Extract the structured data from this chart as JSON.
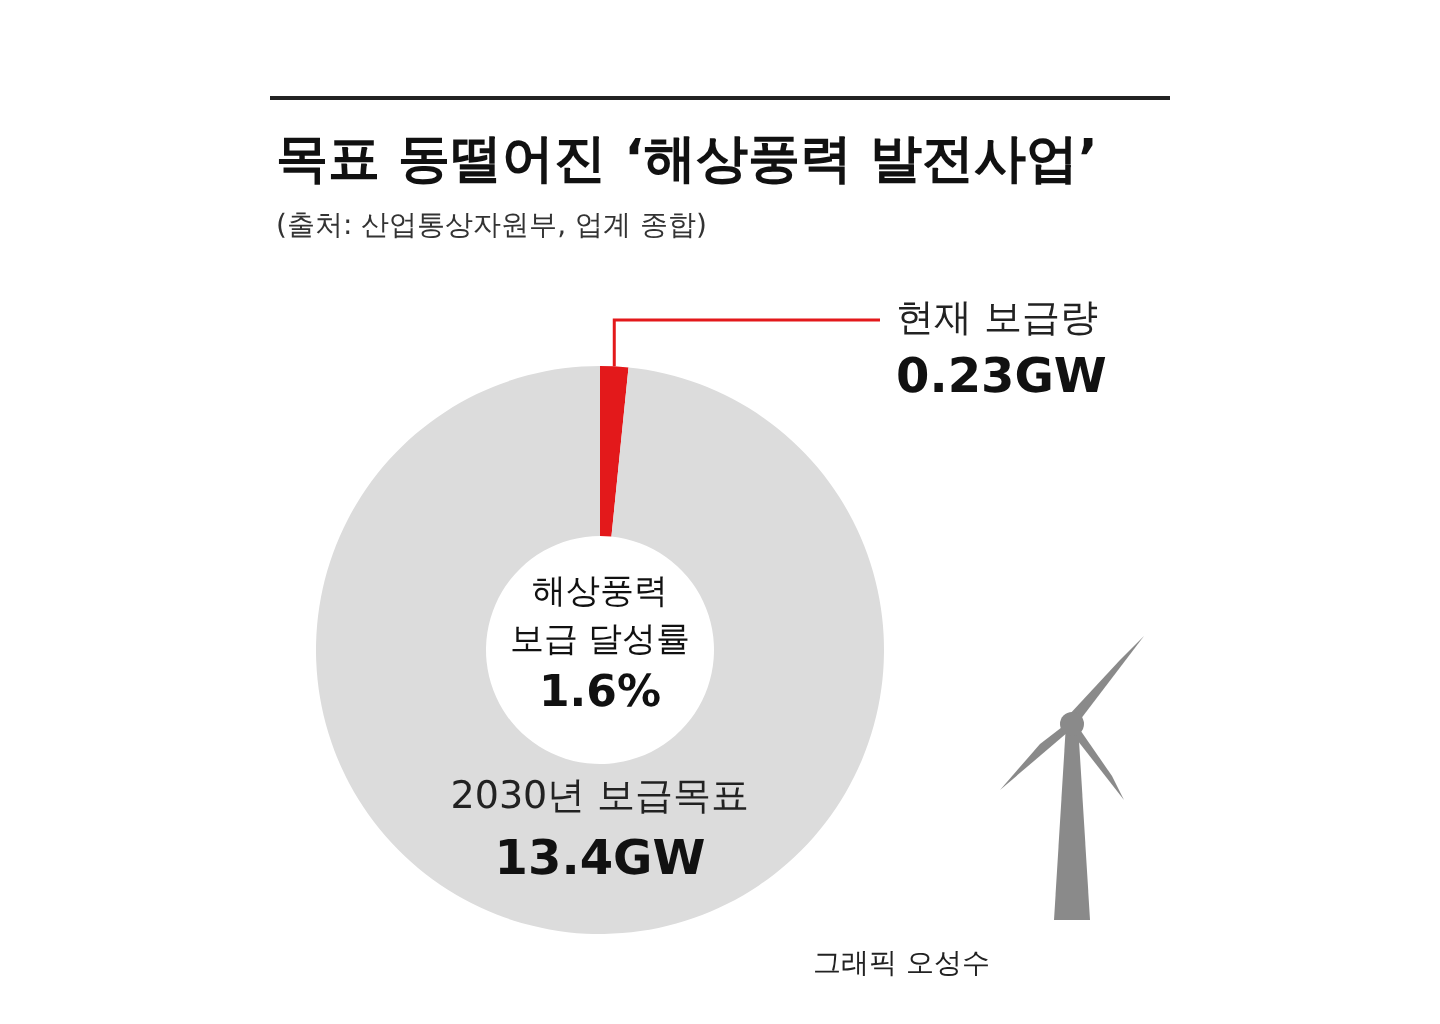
{
  "chart_data": {
    "type": "donut",
    "title": "목표 동떨어진 ‘해상풍력 발전사업’",
    "subtitle": "(출처: 산업통상자원부, 업계 종합)",
    "categories": [
      "현재 보급량",
      "2030년 보급목표"
    ],
    "values": [
      1.6,
      98.4
    ],
    "colors": [
      "#e3191b",
      "#dcdcdc"
    ],
    "annotations": [
      "해상풍력\n보급 달성률\n1.6%",
      "그래픽 오성수",
      "0.23GW",
      "13.4GW"
    ]
  }
}
